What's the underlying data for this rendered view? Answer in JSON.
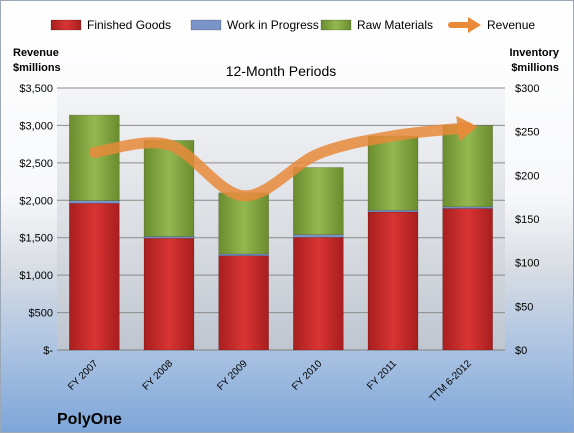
{
  "chart_data": {
    "type": "bar",
    "stacked": true,
    "subtitle": "12-Month Periods",
    "company": "PolyOne",
    "categories": [
      "FY 2007",
      "FY 2008",
      "FY 2009",
      "FY 2010",
      "FY 2011",
      "TTM 6-2012"
    ],
    "series": [
      {
        "name": "Finished Goods",
        "axis": "right",
        "color": "#cc2a2a",
        "values": [
          168,
          128,
          108,
          129,
          158,
          162
        ]
      },
      {
        "name": "Work in Progress",
        "axis": "right",
        "color": "#7a93c9",
        "values": [
          3,
          2,
          2,
          3,
          2,
          2
        ]
      },
      {
        "name": "Raw Materials",
        "axis": "right",
        "color": "#84a83f",
        "values": [
          98,
          110,
          70,
          77,
          85,
          93
        ]
      },
      {
        "name": "Revenue",
        "axis": "left",
        "type": "line",
        "color": "#e88a3a",
        "values": [
          2640,
          2740,
          2060,
          2620,
          2860,
          2970
        ]
      }
    ],
    "left_axis": {
      "title": [
        "Revenue",
        "$millions"
      ],
      "min": 0,
      "max": 3500,
      "step": 500,
      "tick_labels": [
        "$-",
        "$500",
        "$1,000",
        "$1,500",
        "$2,000",
        "$2,500",
        "$3,000",
        "$3,500"
      ]
    },
    "right_axis": {
      "title": [
        "Inventory",
        "$millions"
      ],
      "min": 0,
      "max": 300,
      "step": 50,
      "tick_labels": [
        "$0",
        "$50",
        "$100",
        "$150",
        "$200",
        "$250",
        "$300"
      ]
    },
    "grid": true,
    "legend_position": "top"
  }
}
